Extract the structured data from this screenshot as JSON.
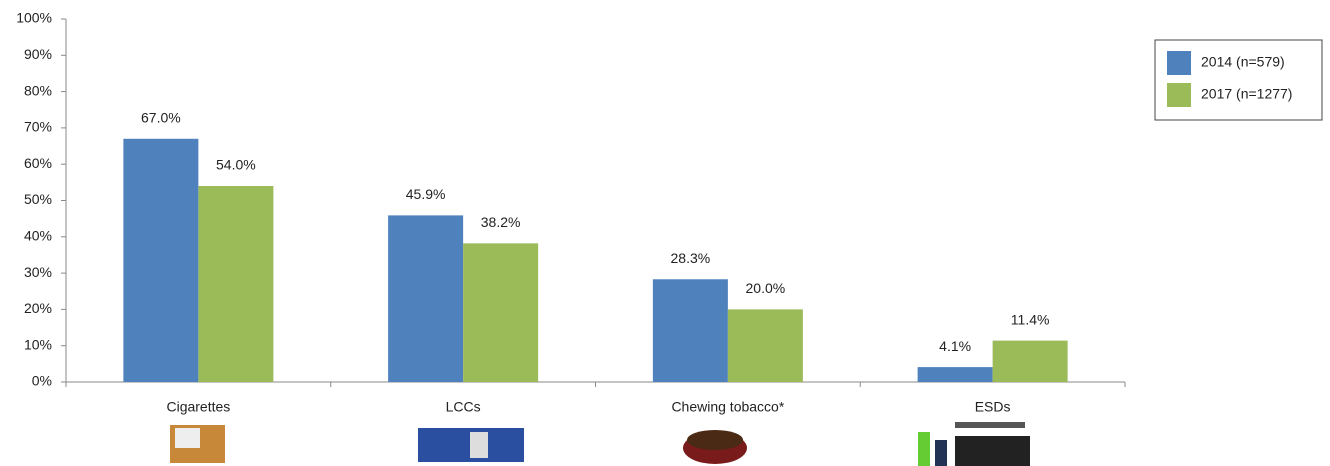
{
  "chart_data": {
    "type": "bar",
    "categories": [
      "Cigarettes",
      "LCCs",
      "Chewing tobacco*",
      "ESDs"
    ],
    "series": [
      {
        "name": "2014 (n=579)",
        "color": "#4f81bd",
        "values": [
          67.0,
          45.9,
          28.3,
          4.1
        ],
        "value_labels": [
          "67.0%",
          "45.9%",
          "28.3%",
          "4.1%"
        ]
      },
      {
        "name": "2017 (n=1277)",
        "color": "#9bbb59",
        "values": [
          54.0,
          38.2,
          20.0,
          11.4
        ],
        "value_labels": [
          "54.0%",
          "38.2%",
          "20.0%",
          "11.4%"
        ]
      }
    ],
    "ylim": [
      0,
      100
    ],
    "yticks": [
      {
        "value": 0,
        "label": "0%"
      },
      {
        "value": 10,
        "label": "10%"
      },
      {
        "value": 20,
        "label": "20%"
      },
      {
        "value": 30,
        "label": "30%"
      },
      {
        "value": 40,
        "label": "40%"
      },
      {
        "value": 50,
        "label": "50%"
      },
      {
        "value": 60,
        "label": "60%"
      },
      {
        "value": 70,
        "label": "70%"
      },
      {
        "value": 80,
        "label": "80%"
      },
      {
        "value": 90,
        "label": "90%"
      },
      {
        "value": 100,
        "label": "100%"
      }
    ],
    "legend": "right"
  }
}
